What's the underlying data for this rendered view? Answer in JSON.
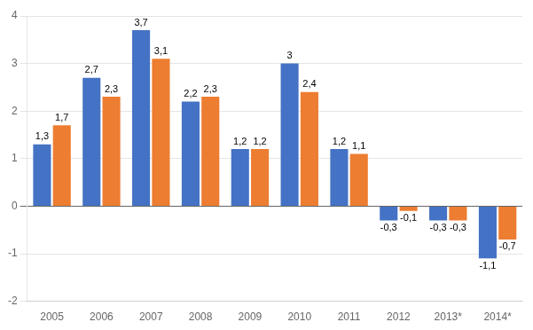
{
  "chart_data": {
    "type": "bar",
    "categories": [
      "2005",
      "2006",
      "2007",
      "2008",
      "2009",
      "2010",
      "2011",
      "2012",
      "2013*",
      "2014*"
    ],
    "series": [
      {
        "color": "#4472C4",
        "values": [
          1.3,
          2.7,
          3.7,
          2.2,
          1.2,
          3.0,
          1.2,
          -0.3,
          -0.3,
          -1.1
        ],
        "value_labels": [
          "1,3",
          "2,7",
          "3,7",
          "2,2",
          "1,2",
          "3",
          "1,2",
          "-0,3",
          "-0,3",
          "-1,1"
        ]
      },
      {
        "color": "#ED7D31",
        "values": [
          1.7,
          2.3,
          3.1,
          2.3,
          1.2,
          2.4,
          1.1,
          -0.1,
          -0.3,
          -0.7
        ],
        "value_labels": [
          "1,7",
          "2,3",
          "3,1",
          "2,3",
          "1,2",
          "2,4",
          "1,1",
          "-0,1",
          "-0,3",
          "-0,7"
        ]
      }
    ],
    "ylim": [
      -2,
      4
    ],
    "yticks": [
      -2,
      -1,
      0,
      1,
      2,
      3,
      4
    ],
    "grid": true,
    "data_labels": true
  }
}
